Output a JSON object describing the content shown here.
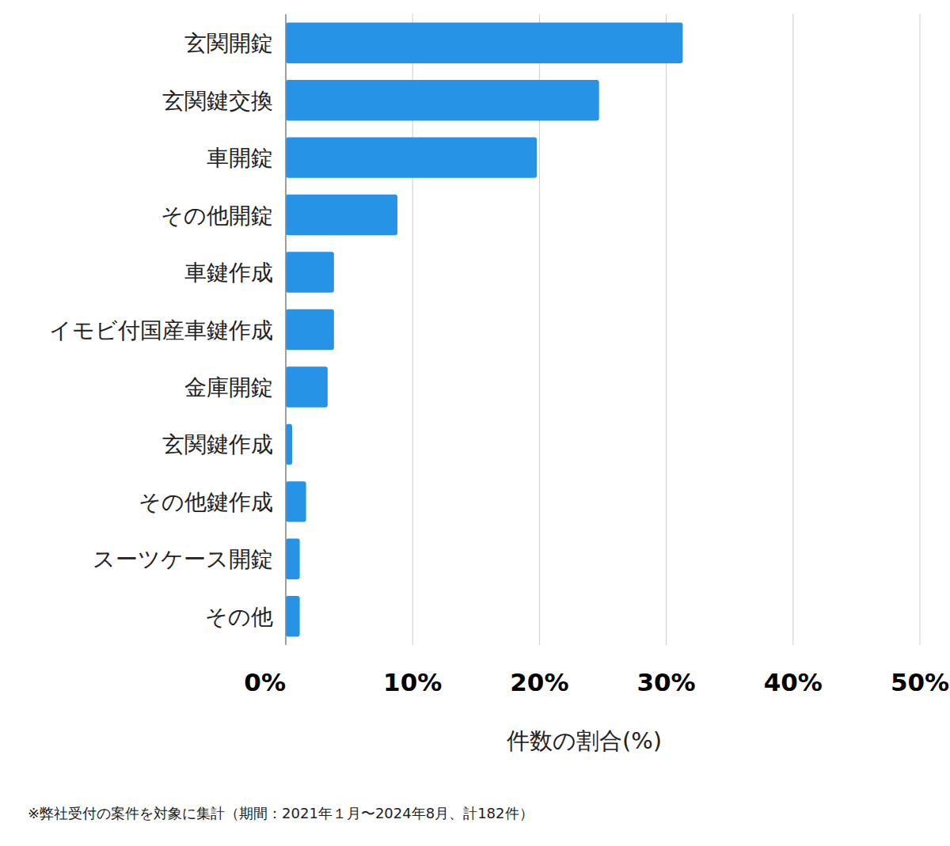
{
  "chart_data": {
    "type": "bar",
    "orientation": "horizontal",
    "x_label": "件数の割合(%)",
    "note": "※弊社受付の案件を対象に集計（期間：2021年１月〜2024年8月、計182件）",
    "categories": [
      "玄関開錠",
      "玄関鍵交換",
      "車開錠",
      "その他開錠",
      "車鍵作成",
      "イモビ付国産車鍵作成",
      "金庫開錠",
      "玄関鍵作成",
      "その他鍵作成",
      "スーツケース開錠",
      "その他"
    ],
    "values": [
      31.3,
      24.7,
      19.8,
      8.8,
      3.8,
      3.8,
      3.3,
      0.5,
      1.6,
      1.1,
      1.1
    ],
    "color": "#2793e6",
    "xlim": [
      0,
      50
    ],
    "xticks": [
      {
        "value": 0,
        "label": "0%"
      },
      {
        "value": 10,
        "label": "10%"
      },
      {
        "value": 20,
        "label": "20%"
      },
      {
        "value": 30,
        "label": "30%"
      },
      {
        "value": 40,
        "label": "40%"
      },
      {
        "value": 50,
        "label": "50%"
      }
    ],
    "grid": true
  }
}
